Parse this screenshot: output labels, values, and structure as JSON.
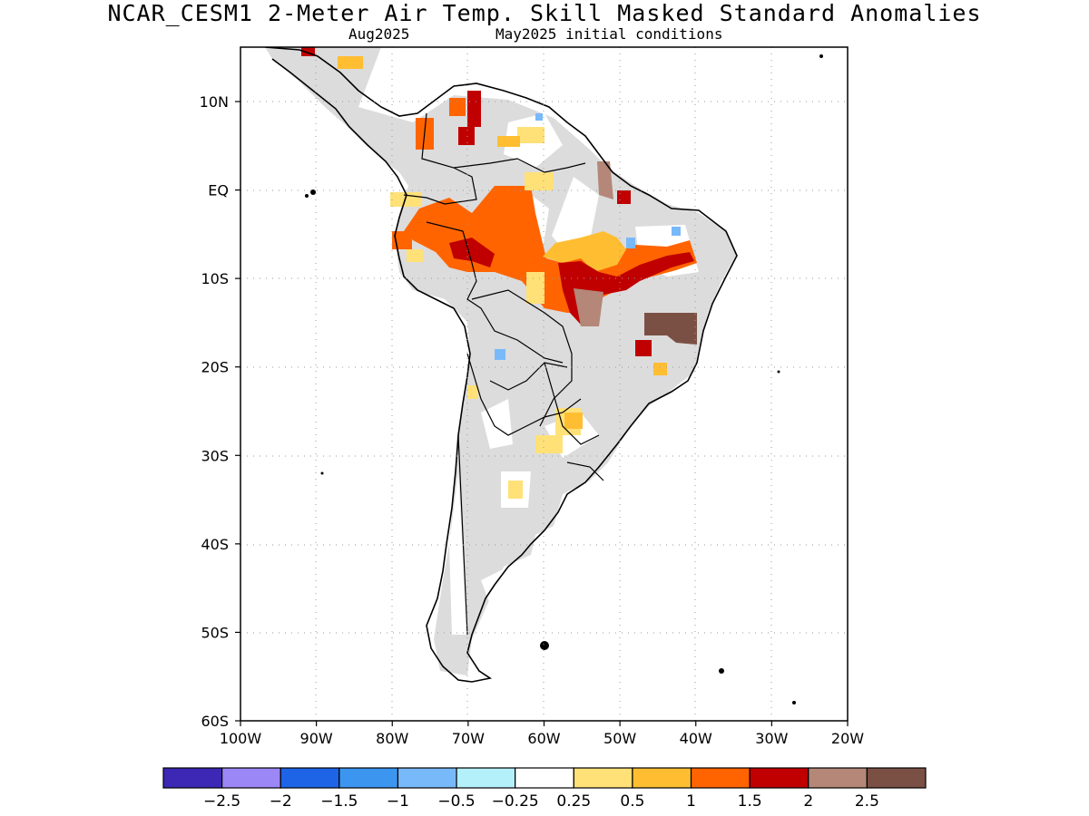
{
  "title": "NCAR_CESM1 2-Meter Air Temp. Skill Masked Standard Anomalies",
  "subtitle_left": "Aug2025",
  "subtitle_right": "May2025 initial conditions",
  "axes": {
    "lon_labels": [
      "100W",
      "90W",
      "80W",
      "70W",
      "60W",
      "50W",
      "40W",
      "30W",
      "20W"
    ],
    "lat_labels": [
      "10N",
      "EQ",
      "10S",
      "20S",
      "30S",
      "40S",
      "50S",
      "60S"
    ]
  },
  "colorbar": {
    "colors": [
      "#3c28b4",
      "#9b87f5",
      "#1e64e6",
      "#3c96f0",
      "#78b9fa",
      "#b4f0fa",
      "#ffffff",
      "#ffe178",
      "#ffbe32",
      "#ff6400",
      "#c00000",
      "#b48778",
      "#7b5044"
    ],
    "labels": [
      "-2.5",
      "-2",
      "-1.5",
      "-1",
      "-0.5",
      "-0.25",
      "0.25",
      "0.5",
      "1",
      "1.5",
      "2",
      "2.5"
    ]
  },
  "map": {
    "land_mask_color": "#dcdcdc",
    "ocean_color": "#ffffff",
    "coastline_color": "#000000",
    "grid": "dotted"
  }
}
